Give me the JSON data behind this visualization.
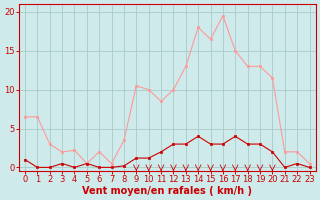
{
  "x": [
    0,
    1,
    2,
    3,
    4,
    5,
    6,
    7,
    8,
    9,
    10,
    11,
    12,
    13,
    14,
    15,
    16,
    17,
    18,
    19,
    20,
    21,
    22,
    23
  ],
  "y_mean": [
    1,
    0,
    0,
    0.5,
    0,
    0.5,
    0,
    0,
    0.2,
    1.2,
    1.2,
    2,
    3,
    3,
    4,
    3,
    3,
    4,
    3,
    3,
    2,
    0,
    0.5,
    0
  ],
  "y_gust": [
    6.5,
    6.5,
    3,
    2,
    2.2,
    0.5,
    2,
    0.5,
    3.5,
    10.5,
    10,
    8.5,
    10,
    13,
    18,
    16.5,
    19.5,
    15,
    13,
    13,
    11.5,
    2,
    2,
    0.5
  ],
  "bg_color": "#ceeaea",
  "grid_color": "#aacaca",
  "line_color_mean": "#cc0000",
  "line_color_gust": "#ff9999",
  "xlabel": "Vent moyen/en rafales ( km/h )",
  "ylabel_ticks": [
    0,
    5,
    10,
    15,
    20
  ],
  "ylim": [
    -0.5,
    21
  ],
  "xlim": [
    -0.5,
    23.5
  ],
  "tick_fontsize": 6,
  "label_fontsize": 7
}
